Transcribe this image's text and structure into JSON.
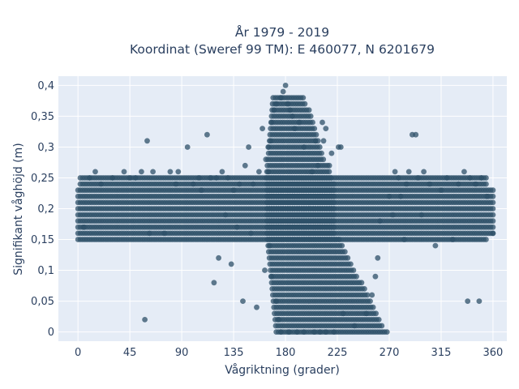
{
  "chart_data": {
    "type": "scatter",
    "title_line1": "År 1979 - 2019",
    "title_line2": "Koordinat (Sweref 99 TM): E 460077, N 6201679",
    "xlabel": "Vågriktning (grader)",
    "ylabel": "Signifikant våghöjd (m)",
    "xlim": [
      -17,
      372
    ],
    "ylim": [
      -0.015,
      0.415
    ],
    "x_ticks": [
      0,
      45,
      90,
      135,
      180,
      225,
      270,
      315,
      360
    ],
    "x_tick_labels": [
      "0",
      "45",
      "90",
      "135",
      "180",
      "225",
      "270",
      "315",
      "360"
    ],
    "y_ticks": [
      0,
      0.05,
      0.1,
      0.15,
      0.2,
      0.25,
      0.3,
      0.35,
      0.4
    ],
    "y_tick_labels": [
      "0",
      "0,05",
      "0,1",
      "0,15",
      "0,2",
      "0,25",
      "0,3",
      "0,35",
      "0,4"
    ],
    "grid": true,
    "background_color": "#e5ecf6",
    "marker_color": "#2e5068",
    "series": [
      {
        "points": [
          [
            0,
            0.15
          ],
          [
            5,
            0.17
          ],
          [
            10,
            0.25
          ],
          [
            15,
            0.26
          ],
          [
            20,
            0.24
          ],
          [
            30,
            0.25
          ],
          [
            40,
            0.26
          ],
          [
            45,
            0.25
          ],
          [
            50,
            0.25
          ],
          [
            55,
            0.26
          ],
          [
            60,
            0.31
          ],
          [
            62,
            0.16
          ],
          [
            65,
            0.26
          ],
          [
            75,
            0.16
          ],
          [
            80,
            0.26
          ],
          [
            85,
            0.24
          ],
          [
            87,
            0.26
          ],
          [
            95,
            0.3
          ],
          [
            100,
            0.24
          ],
          [
            105,
            0.25
          ],
          [
            107,
            0.23
          ],
          [
            112,
            0.32
          ],
          [
            115,
            0.25
          ],
          [
            118,
            0.08
          ],
          [
            120,
            0.25
          ],
          [
            122,
            0.12
          ],
          [
            125,
            0.26
          ],
          [
            128,
            0.19
          ],
          [
            130,
            0.25
          ],
          [
            133,
            0.11
          ],
          [
            135,
            0.23
          ],
          [
            138,
            0.17
          ],
          [
            140,
            0.24
          ],
          [
            143,
            0.05
          ],
          [
            145,
            0.27
          ],
          [
            148,
            0.3
          ],
          [
            150,
            0.16
          ],
          [
            152,
            0.24
          ],
          [
            155,
            0.04
          ],
          [
            157,
            0.26
          ],
          [
            160,
            0.33
          ],
          [
            162,
            0.1
          ],
          [
            165,
            0.26
          ],
          [
            58,
            0.02
          ],
          [
            270,
            0.22
          ],
          [
            273,
            0.19
          ],
          [
            275,
            0.26
          ],
          [
            278,
            0.25
          ],
          [
            280,
            0.22
          ],
          [
            283,
            0.15
          ],
          [
            285,
            0.24
          ],
          [
            287,
            0.26
          ],
          [
            290,
            0.32
          ],
          [
            293,
            0.32
          ],
          [
            295,
            0.25
          ],
          [
            298,
            0.19
          ],
          [
            300,
            0.26
          ],
          [
            305,
            0.24
          ],
          [
            310,
            0.14
          ],
          [
            315,
            0.23
          ],
          [
            320,
            0.25
          ],
          [
            325,
            0.15
          ],
          [
            330,
            0.24
          ],
          [
            335,
            0.26
          ],
          [
            338,
            0.05
          ],
          [
            340,
            0.25
          ],
          [
            345,
            0.24
          ],
          [
            348,
            0.05
          ],
          [
            350,
            0.25
          ],
          [
            355,
            0.22
          ],
          [
            360,
            0.16
          ],
          [
            230,
            0.03
          ],
          [
            240,
            0.01
          ],
          [
            250,
            0.03
          ],
          [
            255,
            0.06
          ],
          [
            258,
            0.09
          ],
          [
            260,
            0.12
          ],
          [
            262,
            0.18
          ],
          [
            228,
            0.3
          ],
          [
            226,
            0.3
          ],
          [
            212,
            0.34
          ],
          [
            215,
            0.33
          ],
          [
            218,
            0.27
          ],
          [
            220,
            0.29
          ],
          [
            213,
            0.31
          ],
          [
            208,
            0.27
          ],
          [
            206,
            0.31
          ],
          [
            203,
            0.26
          ],
          [
            196,
            0.3
          ],
          [
            192,
            0.34
          ],
          [
            176,
            0.38
          ],
          [
            178,
            0.39
          ],
          [
            180,
            0.4
          ],
          [
            182,
            0.37
          ],
          [
            184,
            0.36
          ],
          [
            186,
            0.35
          ],
          [
            188,
            0.33
          ],
          [
            172,
            0.37
          ],
          [
            170,
            0.36
          ],
          [
            168,
            0.34
          ],
          [
            167,
            0.31
          ],
          [
            165,
            0.3
          ],
          [
            163,
            0.28
          ],
          [
            166,
            0.14
          ],
          [
            168,
            0.09
          ],
          [
            172,
            0.05
          ],
          [
            174,
            0.02
          ],
          [
            176,
            0.0
          ],
          [
            190,
            0.0
          ],
          [
            205,
            0.0
          ],
          [
            215,
            0.0
          ],
          [
            222,
            0.0
          ],
          [
            183,
            0.0
          ],
          [
            196,
            0.0
          ],
          [
            210,
            0.0
          ]
        ]
      }
    ]
  }
}
